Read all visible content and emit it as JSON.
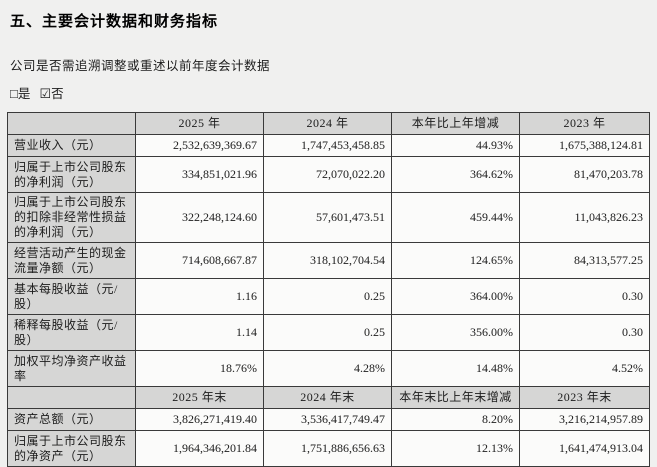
{
  "page": {
    "title": "五、主要会计数据和财务指标",
    "question": "公司是否需追溯调整或重述以前年度会计数据",
    "checkbox_yes": "□",
    "checkbox_yes_label": "是",
    "checkbox_no": "☑",
    "checkbox_no_label": "否"
  },
  "colors": {
    "page_bg": "#f0f0ef",
    "header_cell_bg": "#d6d6d5",
    "value_cell_bg": "#fbfbfa",
    "border": "#3a3a3a",
    "text": "#1c1c1c"
  },
  "table": {
    "header1": [
      "",
      "2025 年",
      "2024 年",
      "本年比上年增减",
      "2023 年"
    ],
    "rows1": [
      {
        "label": "营业收入（元）",
        "values": [
          "2,532,639,369.67",
          "1,747,453,458.85",
          "44.93%",
          "1,675,388,124.81"
        ]
      },
      {
        "label": "归属于上市公司股东的净利润（元）",
        "values": [
          "334,851,021.96",
          "72,070,022.20",
          "364.62%",
          "81,470,203.78"
        ]
      },
      {
        "label": "归属于上市公司股东的扣除非经常性损益的净利润（元）",
        "values": [
          "322,248,124.60",
          "57,601,473.51",
          "459.44%",
          "11,043,826.23"
        ]
      },
      {
        "label": "经营活动产生的现金流量净额（元）",
        "values": [
          "714,608,667.87",
          "318,102,704.54",
          "124.65%",
          "84,313,577.25"
        ]
      },
      {
        "label": "基本每股收益（元/股）",
        "values": [
          "1.16",
          "0.25",
          "364.00%",
          "0.30"
        ]
      },
      {
        "label": "稀释每股收益（元/股）",
        "values": [
          "1.14",
          "0.25",
          "356.00%",
          "0.30"
        ]
      },
      {
        "label": "加权平均净资产收益率",
        "values": [
          "18.76%",
          "4.28%",
          "14.48%",
          "4.52%"
        ]
      }
    ],
    "header2": [
      "",
      "2025 年末",
      "2024 年末",
      "本年末比上年末增减",
      "2023 年末"
    ],
    "rows2": [
      {
        "label": "资产总额（元）",
        "values": [
          "3,826,271,419.40",
          "3,536,417,749.47",
          "8.20%",
          "3,216,214,957.89"
        ]
      },
      {
        "label": "归属于上市公司股东的净资产（元）",
        "values": [
          "1,964,346,201.84",
          "1,751,886,656.63",
          "12.13%",
          "1,641,474,913.04"
        ]
      }
    ]
  }
}
